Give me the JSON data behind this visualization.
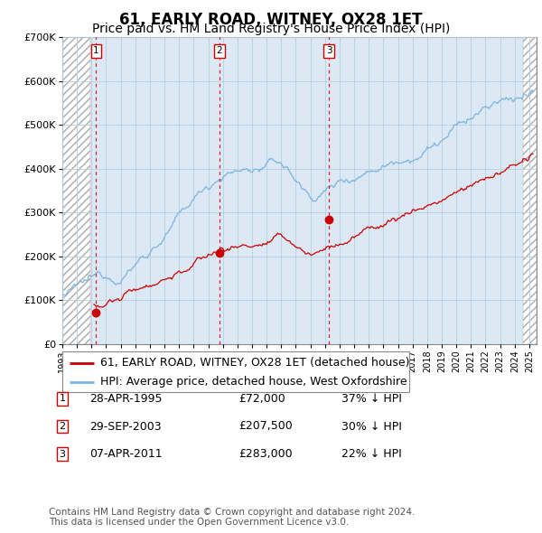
{
  "title": "61, EARLY ROAD, WITNEY, OX28 1ET",
  "subtitle": "Price paid vs. HM Land Registry's House Price Index (HPI)",
  "ylim": [
    0,
    700000
  ],
  "yticks": [
    0,
    100000,
    200000,
    300000,
    400000,
    500000,
    600000,
    700000
  ],
  "ytick_labels": [
    "£0",
    "£100K",
    "£200K",
    "£300K",
    "£400K",
    "£500K",
    "£600K",
    "£700K"
  ],
  "xlim_start": 1993.0,
  "xlim_end": 2025.5,
  "hpi_color": "#7ab4e0",
  "price_color": "#cc0000",
  "vline_color": "#cc0000",
  "bg_color": "#ffffff",
  "plot_bg": "#dce9f5",
  "grid_color": "#b8cfe0",
  "hatch_left_end": 1994.9,
  "hatch_right_start": 2024.6,
  "transactions": [
    {
      "date_dec": 1995.32,
      "price": 72000,
      "label": "1",
      "hpi_pct": 37
    },
    {
      "date_dec": 2003.75,
      "price": 207500,
      "label": "2",
      "hpi_pct": 30
    },
    {
      "date_dec": 2011.27,
      "price": 283000,
      "label": "3",
      "hpi_pct": 22
    }
  ],
  "legend_entry1": "61, EARLY ROAD, WITNEY, OX28 1ET (detached house)",
  "legend_entry2": "HPI: Average price, detached house, West Oxfordshire",
  "table_rows": [
    {
      "num": "1",
      "date": "28-APR-1995",
      "price": "£72,000",
      "hpi": "37% ↓ HPI"
    },
    {
      "num": "2",
      "date": "29-SEP-2003",
      "price": "£207,500",
      "hpi": "30% ↓ HPI"
    },
    {
      "num": "3",
      "date": "07-APR-2011",
      "price": "£283,000",
      "hpi": "22% ↓ HPI"
    }
  ],
  "footnote1": "Contains HM Land Registry data © Crown copyright and database right 2024.",
  "footnote2": "This data is licensed under the Open Government Licence v3.0.",
  "title_fontsize": 12,
  "subtitle_fontsize": 10,
  "tick_fontsize": 8,
  "legend_fontsize": 9,
  "table_fontsize": 9,
  "footnote_fontsize": 7.5
}
